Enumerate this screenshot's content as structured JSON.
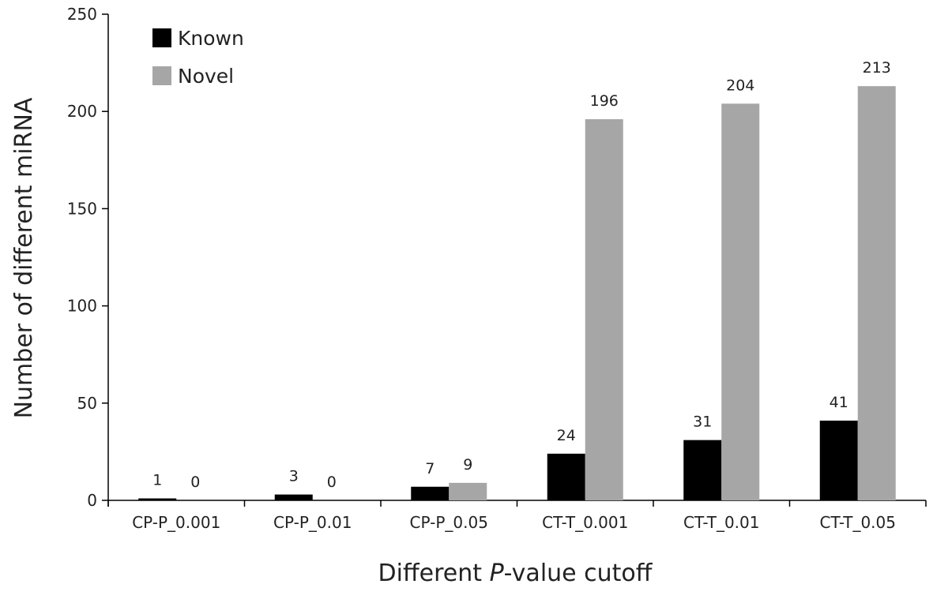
{
  "chart_data": {
    "type": "bar",
    "categories": [
      "CP-P_0.001",
      "CP-P_0.01",
      "CP-P_0.05",
      "CT-T_0.001",
      "CT-T_0.01",
      "CT-T_0.05"
    ],
    "series": [
      {
        "name": "Known",
        "values": [
          1,
          3,
          7,
          24,
          31,
          41
        ],
        "labels": [
          "1",
          "3",
          "7",
          "24",
          "31",
          "41"
        ],
        "color": "#000000"
      },
      {
        "name": "Novel",
        "values": [
          0,
          0,
          9,
          196,
          204,
          213
        ],
        "labels": [
          "0",
          "0",
          "9",
          "196",
          "204",
          "213"
        ],
        "color": "#a6a6a6"
      }
    ],
    "ylim": [
      0,
      250
    ],
    "yticks": [
      0,
      50,
      100,
      150,
      200,
      250
    ],
    "ytick_labels": [
      "0",
      "50",
      "100",
      "150",
      "200",
      "250"
    ],
    "xlabel_prefix": "Different ",
    "xlabel_italic": "P",
    "xlabel_suffix": "-value cutoff",
    "ylabel": "Number of different miRNA",
    "legend_position": "top-left",
    "grid": false
  }
}
